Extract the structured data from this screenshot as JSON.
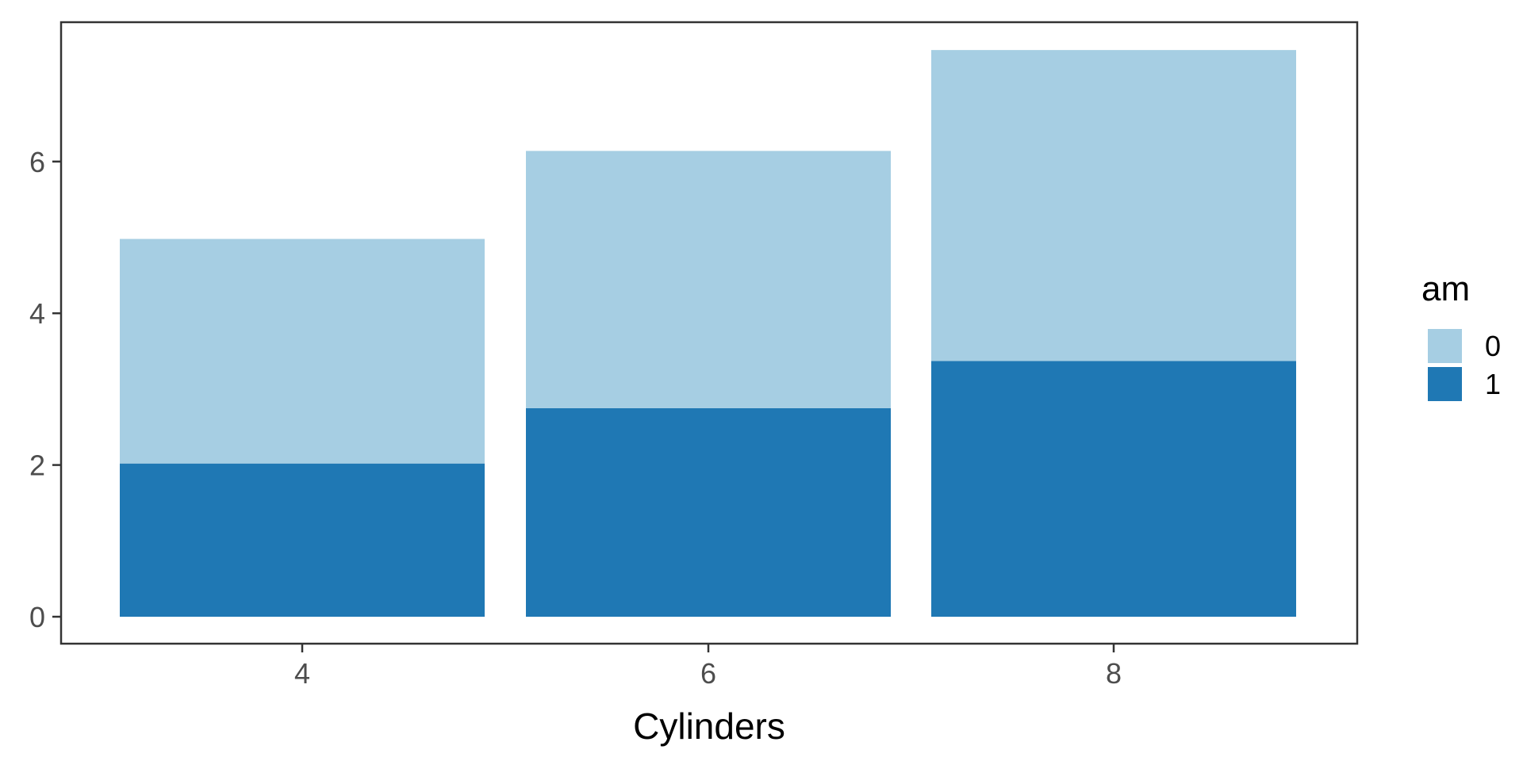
{
  "chart_data": {
    "type": "bar",
    "stacked": true,
    "xlabel": "Cylinders",
    "ylabel": "",
    "categories": [
      "4",
      "6",
      "8"
    ],
    "yticks": [
      "0",
      "2",
      "4",
      "6"
    ],
    "ylim": [
      0,
      7.5
    ],
    "grid": false,
    "legend": {
      "title": "am",
      "position": "right"
    },
    "series": [
      {
        "name": "1",
        "color": "#1F78B4",
        "values": [
          2.02,
          2.75,
          3.37
        ]
      },
      {
        "name": "0",
        "color": "#A6CEE3",
        "values": [
          2.96,
          3.39,
          4.1
        ]
      }
    ]
  }
}
